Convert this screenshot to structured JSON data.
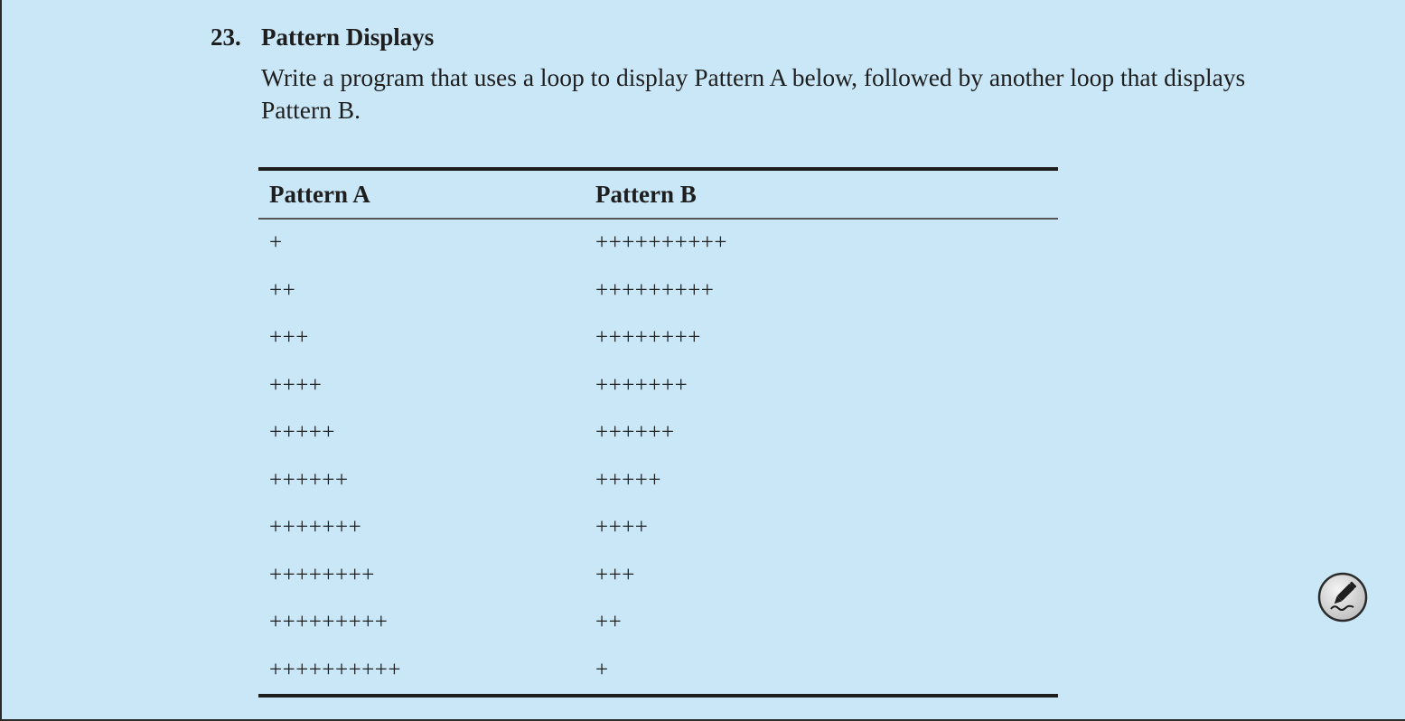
{
  "exercise": {
    "number": "23.",
    "title": "Pattern Displays",
    "prompt": "Write a program that uses a loop to display Pattern A below, followed by another loop that displays Pattern B."
  },
  "table": {
    "headers": [
      "Pattern A",
      "Pattern B"
    ],
    "rows": [
      [
        "+",
        "++++++++++"
      ],
      [
        "++",
        "+++++++++"
      ],
      [
        "+++",
        "++++++++"
      ],
      [
        "++++",
        "+++++++"
      ],
      [
        "+++++",
        "++++++"
      ],
      [
        "++++++",
        "+++++"
      ],
      [
        "+++++++",
        "++++"
      ],
      [
        "++++++++",
        "+++"
      ],
      [
        "+++++++++",
        "++"
      ],
      [
        "++++++++++",
        "+"
      ]
    ]
  },
  "icons": {
    "edit": "pen-signature-icon"
  },
  "colors": {
    "background": "#c9e7f7",
    "text": "#1e1e1e"
  }
}
